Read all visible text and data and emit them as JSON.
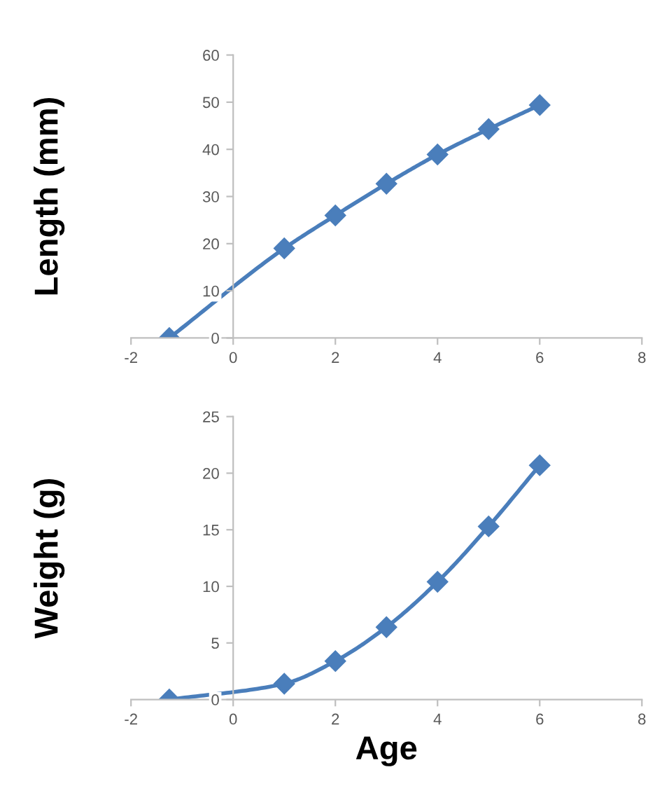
{
  "chart_data": [
    {
      "type": "line",
      "ylabel": "Length (mm)",
      "x": [
        -1.25,
        1,
        2,
        3,
        4,
        5,
        6
      ],
      "series": [
        {
          "color": "#4a7ebb",
          "values": [
            0,
            19,
            26,
            32.7,
            38.9,
            44.3,
            49.4
          ]
        }
      ],
      "xlim": [
        -2,
        8
      ],
      "xticks": [
        -2,
        0,
        2,
        4,
        6,
        8
      ],
      "ylim": [
        0,
        60
      ],
      "yticks": [
        0,
        10,
        20,
        30,
        40,
        50,
        60
      ],
      "marker": "diamond",
      "line_style": "solid",
      "grid": false,
      "legend": false
    },
    {
      "type": "line",
      "ylabel": "Weight (g)",
      "xlabel": "Age",
      "x": [
        -1.25,
        1,
        2,
        3,
        4,
        5,
        6
      ],
      "series": [
        {
          "color": "#4a7ebb",
          "values": [
            0,
            1.4,
            3.4,
            6.4,
            10.4,
            15.3,
            20.7
          ]
        }
      ],
      "xlim": [
        -2,
        8
      ],
      "xticks": [
        -2,
        0,
        2,
        4,
        6,
        8
      ],
      "ylim": [
        0,
        25
      ],
      "yticks": [
        0,
        5,
        10,
        15,
        20,
        25
      ],
      "marker": "diamond",
      "line_style": "solid",
      "grid": false,
      "legend": false
    }
  ]
}
